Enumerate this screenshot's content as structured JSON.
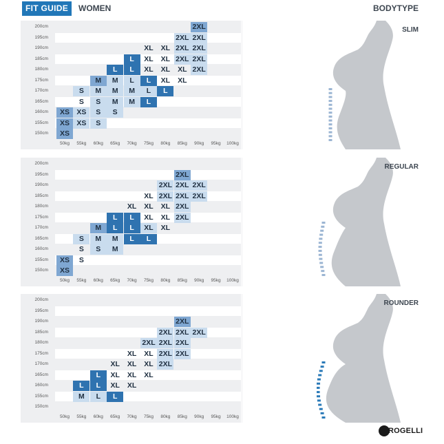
{
  "header": {
    "tag": "FIT GUIDE",
    "title": "WOMEN",
    "right": "BODYTYPE"
  },
  "heights": [
    "200cm",
    "195cm",
    "190cm",
    "185cm",
    "180cm",
    "175cm",
    "170cm",
    "165cm",
    "160cm",
    "155cm",
    "150cm"
  ],
  "weights": [
    "50kg",
    "55kg",
    "60kg",
    "65kg",
    "70kg",
    "75kg",
    "80kg",
    "85kg",
    "90kg",
    "95kg",
    "100kg"
  ],
  "panels": [
    {
      "type_label": "SLIM",
      "rows": [
        [
          null,
          null,
          null,
          null,
          null,
          null,
          null,
          null,
          [
            "2XL",
            "mid"
          ],
          null,
          null
        ],
        [
          null,
          null,
          null,
          null,
          null,
          null,
          null,
          [
            "2XL",
            "light"
          ],
          [
            "2XL",
            "light"
          ],
          null,
          null
        ],
        [
          null,
          null,
          null,
          null,
          null,
          [
            "XL",
            "none"
          ],
          [
            "XL",
            "none"
          ],
          [
            "2XL",
            "light"
          ],
          [
            "2XL",
            "light"
          ],
          null,
          null
        ],
        [
          null,
          null,
          null,
          null,
          [
            "L",
            "dark"
          ],
          [
            "XL",
            "none"
          ],
          [
            "XL",
            "none"
          ],
          [
            "2XL",
            "light"
          ],
          [
            "2XL",
            "light"
          ],
          null,
          null
        ],
        [
          null,
          null,
          null,
          [
            "L",
            "dark"
          ],
          [
            "L",
            "dark"
          ],
          [
            "XL",
            "none"
          ],
          [
            "XL",
            "none"
          ],
          [
            "XL",
            "none"
          ],
          [
            "2XL",
            "light"
          ],
          null,
          null
        ],
        [
          null,
          null,
          [
            "M",
            "mid"
          ],
          [
            "M",
            "light"
          ],
          [
            "L",
            "light"
          ],
          [
            "L",
            "dark"
          ],
          [
            "XL",
            "none"
          ],
          [
            "XL",
            "none"
          ],
          null,
          null,
          null
        ],
        [
          null,
          [
            "S",
            "light"
          ],
          [
            "M",
            "light"
          ],
          [
            "M",
            "light"
          ],
          [
            "M",
            "light"
          ],
          [
            "L",
            "light"
          ],
          [
            "L",
            "dark"
          ],
          null,
          null,
          null,
          null
        ],
        [
          null,
          [
            "S",
            "none"
          ],
          [
            "S",
            "light"
          ],
          [
            "M",
            "light"
          ],
          [
            "M",
            "light"
          ],
          [
            "L",
            "dark"
          ],
          null,
          null,
          null,
          null,
          null
        ],
        [
          [
            "XS",
            "mid"
          ],
          [
            "XS",
            "light"
          ],
          [
            "S",
            "light"
          ],
          [
            "S",
            "light"
          ],
          null,
          null,
          null,
          null,
          null,
          null,
          null
        ],
        [
          [
            "XS",
            "mid"
          ],
          [
            "XS",
            "light"
          ],
          [
            "S",
            "light"
          ],
          null,
          null,
          null,
          null,
          null,
          null,
          null,
          null
        ],
        [
          [
            "XS",
            "mid"
          ],
          null,
          null,
          null,
          null,
          null,
          null,
          null,
          null,
          null,
          null
        ]
      ]
    },
    {
      "type_label": "REGULAR",
      "rows": [
        [
          null,
          null,
          null,
          null,
          null,
          null,
          null,
          null,
          null,
          null,
          null
        ],
        [
          null,
          null,
          null,
          null,
          null,
          null,
          null,
          [
            "2XL",
            "mid"
          ],
          null,
          null,
          null
        ],
        [
          null,
          null,
          null,
          null,
          null,
          null,
          [
            "2XL",
            "light"
          ],
          [
            "2XL",
            "light"
          ],
          [
            "2XL",
            "light"
          ],
          null,
          null
        ],
        [
          null,
          null,
          null,
          null,
          null,
          [
            "XL",
            "none"
          ],
          [
            "2XL",
            "light"
          ],
          [
            "2XL",
            "light"
          ],
          [
            "2XL",
            "light"
          ],
          null,
          null
        ],
        [
          null,
          null,
          null,
          null,
          [
            "XL",
            "none"
          ],
          [
            "XL",
            "none"
          ],
          [
            "XL",
            "none"
          ],
          [
            "2XL",
            "light"
          ],
          null,
          null,
          null
        ],
        [
          null,
          null,
          null,
          [
            "L",
            "dark"
          ],
          [
            "L",
            "dark"
          ],
          [
            "XL",
            "none"
          ],
          [
            "XL",
            "none"
          ],
          [
            "2XL",
            "light"
          ],
          null,
          null,
          null
        ],
        [
          null,
          null,
          [
            "M",
            "mid"
          ],
          [
            "L",
            "dark"
          ],
          [
            "L",
            "dark"
          ],
          [
            "XL",
            "light"
          ],
          [
            "XL",
            "none"
          ],
          null,
          null,
          null,
          null
        ],
        [
          null,
          [
            "S",
            "light"
          ],
          [
            "M",
            "light"
          ],
          [
            "M",
            "light"
          ],
          [
            "L",
            "dark"
          ],
          [
            "L",
            "dark"
          ],
          null,
          null,
          null,
          null,
          null
        ],
        [
          null,
          [
            "S",
            "none"
          ],
          [
            "S",
            "light"
          ],
          [
            "M",
            "light"
          ],
          null,
          null,
          null,
          null,
          null,
          null,
          null
        ],
        [
          [
            "XS",
            "mid"
          ],
          [
            "S",
            "none"
          ],
          null,
          null,
          null,
          null,
          null,
          null,
          null,
          null,
          null
        ],
        [
          [
            "XS",
            "mid"
          ],
          null,
          null,
          null,
          null,
          null,
          null,
          null,
          null,
          null,
          null
        ]
      ]
    },
    {
      "type_label": "ROUNDER",
      "rows": [
        [
          null,
          null,
          null,
          null,
          null,
          null,
          null,
          null,
          null,
          null,
          null
        ],
        [
          null,
          null,
          null,
          null,
          null,
          null,
          null,
          null,
          null,
          null,
          null
        ],
        [
          null,
          null,
          null,
          null,
          null,
          null,
          null,
          [
            "2XL",
            "mid"
          ],
          null,
          null,
          null
        ],
        [
          null,
          null,
          null,
          null,
          null,
          null,
          [
            "2XL",
            "light"
          ],
          [
            "2XL",
            "light"
          ],
          [
            "2XL",
            "light"
          ],
          null,
          null
        ],
        [
          null,
          null,
          null,
          null,
          null,
          [
            "2XL",
            "light"
          ],
          [
            "2XL",
            "light"
          ],
          [
            "2XL",
            "light"
          ],
          null,
          null,
          null
        ],
        [
          null,
          null,
          null,
          null,
          [
            "XL",
            "none"
          ],
          [
            "XL",
            "none"
          ],
          [
            "2XL",
            "light"
          ],
          [
            "2XL",
            "light"
          ],
          null,
          null,
          null
        ],
        [
          null,
          null,
          null,
          [
            "XL",
            "none"
          ],
          [
            "XL",
            "none"
          ],
          [
            "XL",
            "none"
          ],
          [
            "2XL",
            "light"
          ],
          null,
          null,
          null,
          null
        ],
        [
          null,
          null,
          [
            "L",
            "dark"
          ],
          [
            "XL",
            "none"
          ],
          [
            "XL",
            "none"
          ],
          [
            "XL",
            "none"
          ],
          null,
          null,
          null,
          null,
          null
        ],
        [
          null,
          [
            "L",
            "dark"
          ],
          [
            "L",
            "dark"
          ],
          [
            "XL",
            "none"
          ],
          [
            "XL",
            "none"
          ],
          null,
          null,
          null,
          null,
          null,
          null
        ],
        [
          null,
          [
            "M",
            "light"
          ],
          [
            "L",
            "light"
          ],
          [
            "L",
            "dark"
          ],
          null,
          null,
          null,
          null,
          null,
          null,
          null
        ],
        [
          null,
          null,
          null,
          null,
          null,
          null,
          null,
          null,
          null,
          null,
          null
        ]
      ]
    }
  ],
  "colors": {
    "accent": "#2177b8",
    "light": "#c9dcee",
    "mid": "#7fa7d2",
    "dark": "#2f73b0",
    "panel": "#eeeff1",
    "silhouette": "#c5c8cc",
    "measure": "#9bb5d3"
  },
  "logo": {
    "text": "ROGELLI",
    "icon": "rogelli-logo-icon"
  }
}
